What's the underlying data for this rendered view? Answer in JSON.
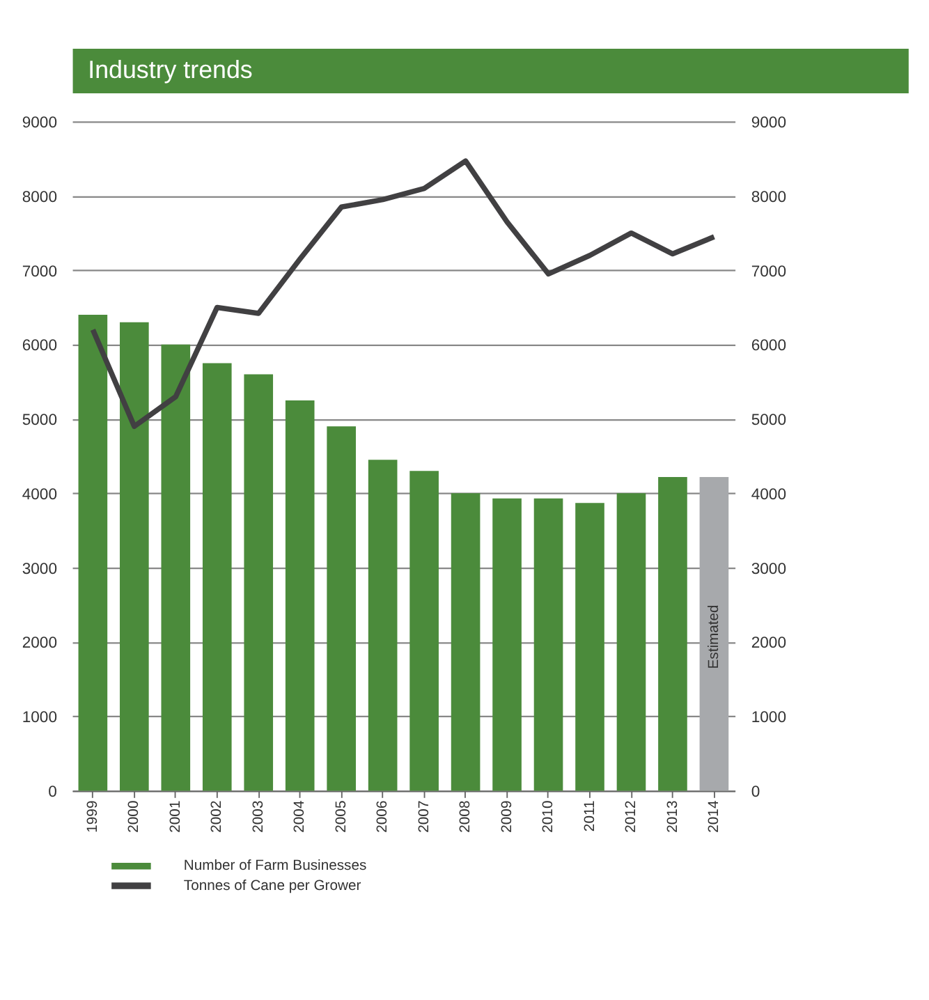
{
  "chart_data": {
    "type": "bar",
    "title": "Industry trends",
    "categories": [
      "1999",
      "2000",
      "2001",
      "2002",
      "2003",
      "2004",
      "2005",
      "2006",
      "2007",
      "2008",
      "2009",
      "2010",
      "2011",
      "2012",
      "2013",
      "2014"
    ],
    "series": [
      {
        "name": "Number of Farm Businesses",
        "color": "#4b8b3b",
        "colors": [
          "#4b8b3b",
          "#4b8b3b",
          "#4b8b3b",
          "#4b8b3b",
          "#4b8b3b",
          "#4b8b3b",
          "#4b8b3b",
          "#4b8b3b",
          "#4b8b3b",
          "#4b8b3b",
          "#4b8b3b",
          "#4b8b3b",
          "#4b8b3b",
          "#4b8b3b",
          "#4b8b3b",
          "#a7a9ac"
        ],
        "values": [
          6400,
          6300,
          6000,
          5750,
          5600,
          5250,
          4900,
          4450,
          4300,
          4000,
          3930,
          3930,
          3870,
          4000,
          4220,
          4220
        ]
      },
      {
        "name": "Tonnes of Cane per Grower",
        "type": "line",
        "axis": "y2",
        "color": "#414042",
        "values": [
          6200,
          4900,
          5300,
          6500,
          6420,
          7150,
          7850,
          7950,
          8100,
          8470,
          7650,
          6950,
          7200,
          7500,
          7220,
          7450
        ]
      }
    ],
    "ylim": [
      0,
      9000
    ],
    "yticks": [
      0,
      1000,
      2000,
      3000,
      4000,
      5000,
      6000,
      7000,
      8000,
      9000
    ],
    "y2lim": [
      0,
      9000
    ],
    "y2ticks": [
      0,
      1000,
      2000,
      3000,
      4000,
      5000,
      6000,
      7000,
      8000,
      9000
    ],
    "annotations": [
      "Estimated"
    ],
    "grid": "y",
    "legend": "bottom left",
    "marker": "none",
    "line_style": "solid"
  }
}
